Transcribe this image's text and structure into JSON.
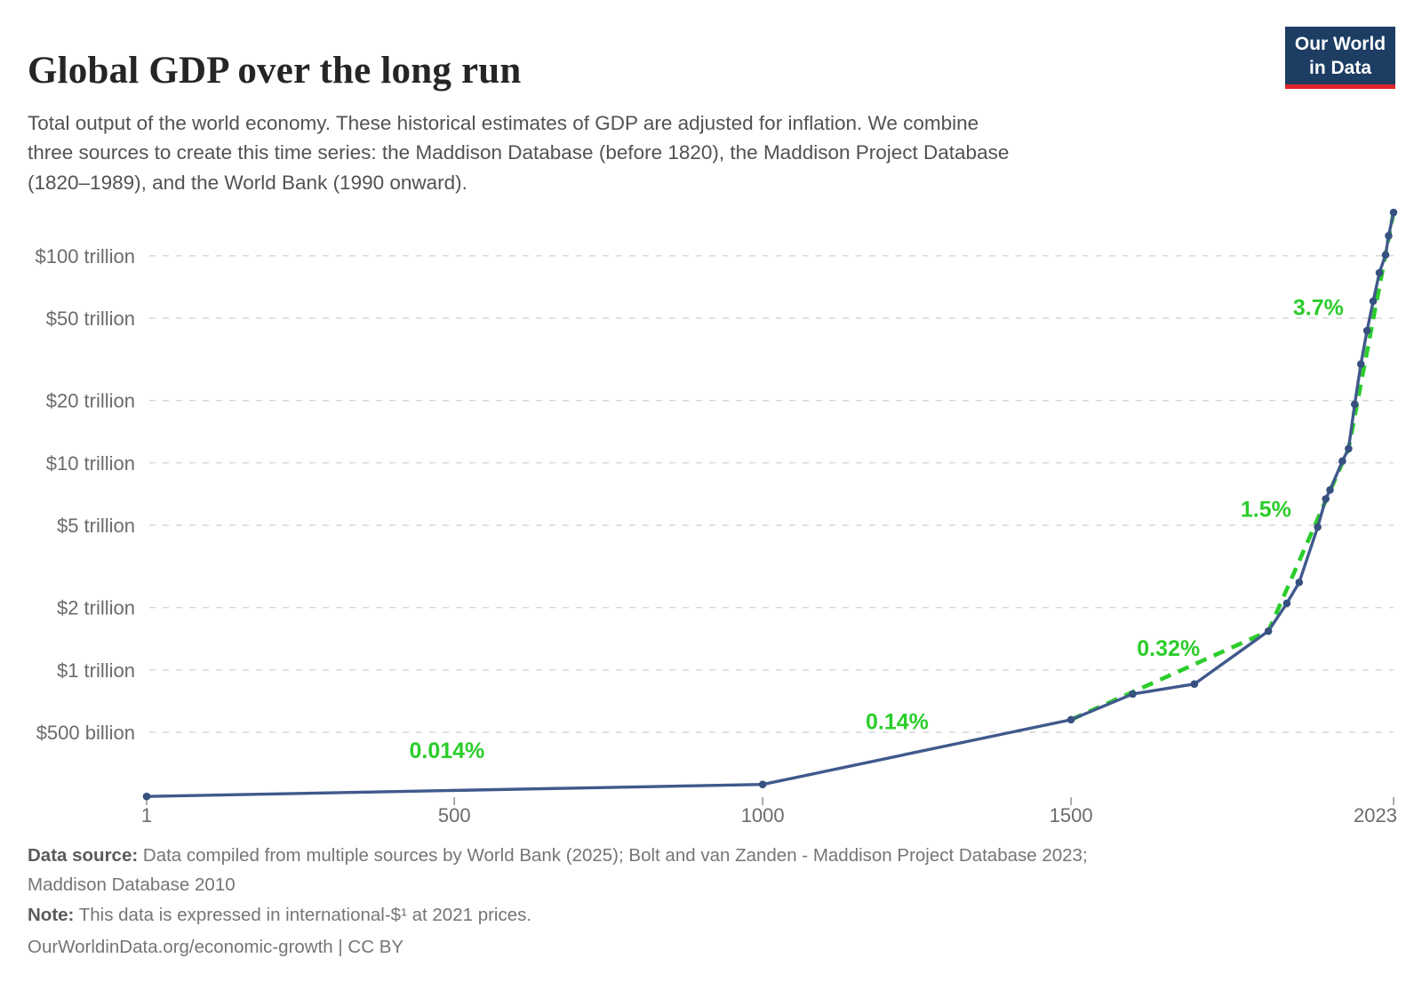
{
  "header": {
    "title": "Global GDP over the long run",
    "subtitle_lines": [
      "Total output of the world economy. These historical estimates of GDP are adjusted for inflation. We combine",
      "three sources to create this time series: the Maddison Database (before 1820), the Maddison Project Database",
      "(1820–1989), and the World Bank (1990 onward)."
    ],
    "logo": {
      "line1": "Our World",
      "line2": "in Data",
      "bg_color": "#1d3d63",
      "accent_color": "#e0242c"
    }
  },
  "chart_data": {
    "type": "line",
    "title": "Global GDP over the long run",
    "y_scale": "log",
    "x_scale": "linear",
    "grid": "on",
    "grid_color": "#d6d6d6",
    "x_axis": {
      "range": [
        1,
        2023
      ],
      "ticks": [
        {
          "label": "1",
          "year": 1
        },
        {
          "label": "500",
          "year": 500
        },
        {
          "label": "1000",
          "year": 1000
        },
        {
          "label": "1500",
          "year": 1500
        },
        {
          "label": "2023",
          "year": 2023
        }
      ]
    },
    "y_axis": {
      "unit": "international-$ at 2021 prices",
      "ticks": [
        {
          "label": "$100 trillion",
          "value_billion": 100000
        },
        {
          "label": "$50 trillion",
          "value_billion": 50000
        },
        {
          "label": "$20 trillion",
          "value_billion": 20000
        },
        {
          "label": "$10 trillion",
          "value_billion": 10000
        },
        {
          "label": "$5 trillion",
          "value_billion": 5000
        },
        {
          "label": "$2 trillion",
          "value_billion": 2000
        },
        {
          "label": "$1 trillion",
          "value_billion": 1000
        },
        {
          "label": "$500 billion",
          "value_billion": 500
        }
      ]
    },
    "series": [
      {
        "name": "World GDP",
        "color": "#40598c",
        "marker_color": "#36517f",
        "points": [
          {
            "year": 1,
            "gdp_billion": 245
          },
          {
            "year": 1000,
            "gdp_billion": 280
          },
          {
            "year": 1500,
            "gdp_billion": 575
          },
          {
            "year": 1600,
            "gdp_billion": 765
          },
          {
            "year": 1700,
            "gdp_billion": 855
          },
          {
            "year": 1820,
            "gdp_billion": 1540
          },
          {
            "year": 1850,
            "gdp_billion": 2100
          },
          {
            "year": 1870,
            "gdp_billion": 2650
          },
          {
            "year": 1900,
            "gdp_billion": 4900
          },
          {
            "year": 1913,
            "gdp_billion": 6700
          },
          {
            "year": 1920,
            "gdp_billion": 7400
          },
          {
            "year": 1940,
            "gdp_billion": 10200
          },
          {
            "year": 1950,
            "gdp_billion": 11700
          },
          {
            "year": 1960,
            "gdp_billion": 19200
          },
          {
            "year": 1970,
            "gdp_billion": 30000
          },
          {
            "year": 1980,
            "gdp_billion": 43500
          },
          {
            "year": 1990,
            "gdp_billion": 60400
          },
          {
            "year": 2000,
            "gdp_billion": 82800
          },
          {
            "year": 2010,
            "gdp_billion": 101000
          },
          {
            "year": 2015,
            "gdp_billion": 125000
          },
          {
            "year": 2023,
            "gdp_billion": 162000
          }
        ]
      }
    ],
    "growth_trend": {
      "color": "#2bcd2b",
      "style": "dashed",
      "years": [
        1500,
        1820,
        1950,
        2023
      ]
    },
    "growth_labels": [
      {
        "text": "0.014%",
        "year": 488,
        "gdp_billion": 410
      },
      {
        "text": "0.14%",
        "year": 1218,
        "gdp_billion": 565
      },
      {
        "text": "0.32%",
        "year": 1658,
        "gdp_billion": 1280
      },
      {
        "text": "1.5%",
        "year": 1816,
        "gdp_billion": 6000
      },
      {
        "text": "3.7%",
        "year": 1901,
        "gdp_billion": 56500
      }
    ]
  },
  "footer": {
    "source_label": "Data source:",
    "source_lines": [
      "Data compiled from multiple sources by World Bank (2025); Bolt and van Zanden - Maddison Project Database 2023;",
      "Maddison Database 2010"
    ],
    "note_label": "Note:",
    "note_text": "This data is expressed in international-$¹ at 2021 prices.",
    "citation": "OurWorldinData.org/economic-growth | CC BY"
  }
}
